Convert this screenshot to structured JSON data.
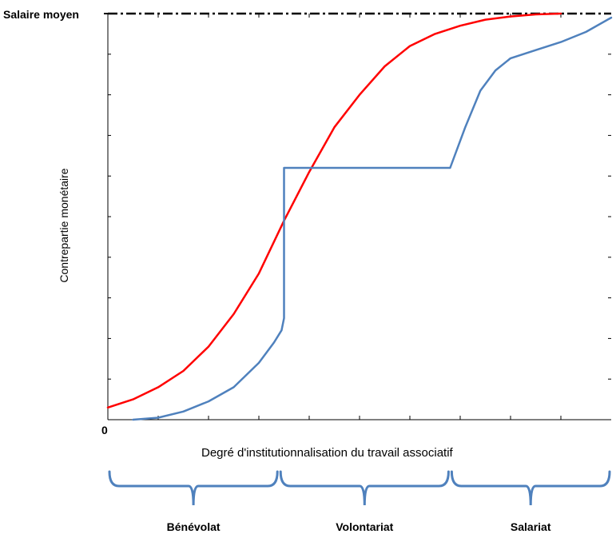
{
  "chart_data": {
    "type": "line",
    "title": "",
    "xlabel": "Degré d'institutionnalisation du travail associatif",
    "ylabel": "Contrepartie monétaire",
    "origin_label": "0",
    "reference_line": {
      "label": "Salaire moyen",
      "y": 1.0,
      "style": "dash-dot"
    },
    "xlim": [
      0,
      10
    ],
    "ylim": [
      0,
      1
    ],
    "grid": false,
    "legend": "none",
    "series": [
      {
        "color": "#ff0000",
        "x": [
          0.0,
          0.5,
          1.0,
          1.5,
          2.0,
          2.5,
          3.0,
          3.5,
          4.0,
          4.5,
          5.0,
          5.5,
          6.0,
          6.5,
          7.0,
          7.5,
          8.0,
          8.5,
          9.0
        ],
        "y": [
          0.03,
          0.05,
          0.08,
          0.12,
          0.18,
          0.26,
          0.36,
          0.49,
          0.61,
          0.72,
          0.8,
          0.87,
          0.92,
          0.95,
          0.97,
          0.985,
          0.993,
          0.998,
          1.0
        ]
      },
      {
        "color": "#4f81bd",
        "x": [
          0.5,
          1.0,
          1.5,
          2.0,
          2.5,
          3.0,
          3.3,
          3.45,
          3.5,
          3.5,
          4.0,
          5.0,
          6.0,
          6.8,
          7.1,
          7.4,
          7.7,
          8.0,
          8.5,
          9.0,
          9.5,
          10.0
        ],
        "y": [
          0.0,
          0.005,
          0.02,
          0.045,
          0.08,
          0.14,
          0.19,
          0.22,
          0.25,
          0.62,
          0.62,
          0.62,
          0.62,
          0.62,
          0.72,
          0.81,
          0.86,
          0.89,
          0.91,
          0.93,
          0.955,
          0.99
        ]
      }
    ],
    "zones": [
      {
        "label": "Bénévolat",
        "x_start": 0,
        "x_end": 3.4
      },
      {
        "label": "Volontariat",
        "x_start": 3.4,
        "x_end": 6.8
      },
      {
        "label": "Salariat",
        "x_start": 6.8,
        "x_end": 10.0
      }
    ],
    "colors": {
      "axis": "#000000",
      "brace": "#4f81bd"
    }
  }
}
